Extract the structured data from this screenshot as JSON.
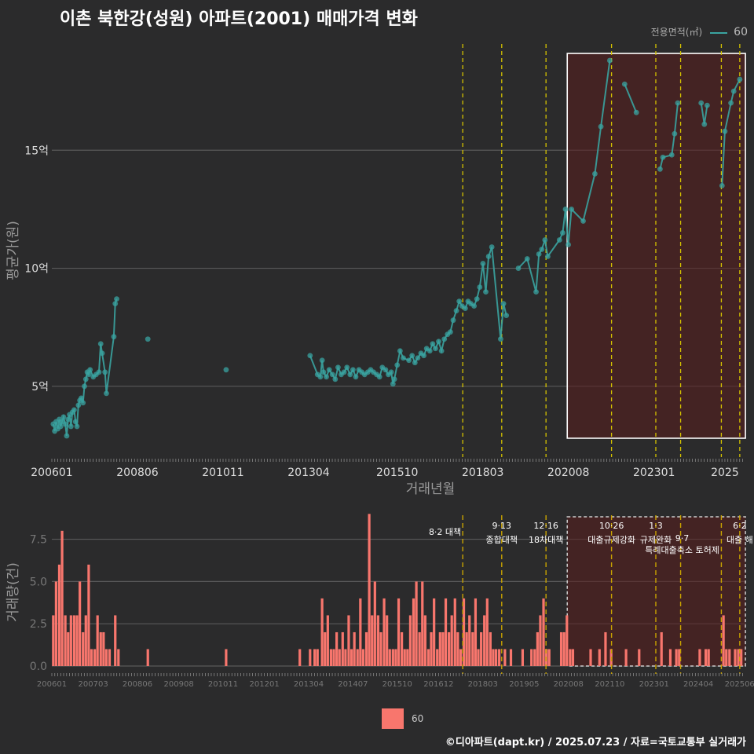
{
  "title": "이촌 북한강(성원) 아파트(2001) 매매가격 변화",
  "caption": "©디아파트(dapt.kr) / 2025.07.23 / 자료=국토교통부 실거래가",
  "legend_top": {
    "title": "전용면적(㎡)",
    "value": "60"
  },
  "legend_bottom": {
    "value": "60"
  },
  "colors": {
    "price": "#3aa3a0",
    "volume": "#f8766d",
    "policy": "#d4c200",
    "highlight": "#5a1e1e"
  },
  "chart_data": [
    {
      "type": "line",
      "name": "price",
      "xlabel": "거래년월",
      "ylabel": "평균가(원)",
      "x_ticks": [
        "200601",
        "200806",
        "201011",
        "201304",
        "201510",
        "201803",
        "202008",
        "202301",
        "2025"
      ],
      "y_ticks": [
        "5억",
        "10억",
        "15억"
      ],
      "y_tick_values": [
        5,
        10,
        15
      ],
      "xlim": [
        2006.0,
        2025.6
      ],
      "ylim": [
        2.0,
        19.5
      ],
      "policy_lines": [
        2017.6,
        2018.7,
        2019.95,
        2021.8,
        2023.05,
        2023.75,
        2024.9,
        2025.42
      ],
      "highlight_box": {
        "x0": 2020.55,
        "x1": 2025.58,
        "y0": 2.8,
        "y1": 19.1
      },
      "series": [
        {
          "name": "60",
          "points": [
            [
              2006.04,
              3.4
            ],
            [
              2006.08,
              3.1
            ],
            [
              2006.12,
              3.5
            ],
            [
              2006.17,
              3.2
            ],
            [
              2006.21,
              3.6
            ],
            [
              2006.25,
              3.3
            ],
            [
              2006.29,
              3.5
            ],
            [
              2006.33,
              3.7
            ],
            [
              2006.38,
              3.4
            ],
            [
              2006.42,
              2.9
            ],
            [
              2006.46,
              3.6
            ],
            [
              2006.5,
              3.8
            ],
            [
              2006.54,
              3.3
            ],
            [
              2006.58,
              3.9
            ],
            [
              2006.63,
              4.0
            ],
            [
              2006.67,
              3.5
            ],
            [
              2006.71,
              3.3
            ],
            [
              2006.75,
              4.2
            ],
            [
              2006.79,
              4.4
            ],
            [
              2006.83,
              4.5
            ],
            [
              2006.88,
              4.3
            ],
            [
              2006.92,
              5.0
            ],
            [
              2006.96,
              5.3
            ],
            [
              2007.0,
              5.6
            ],
            [
              2007.04,
              5.5
            ],
            [
              2007.08,
              5.7
            ],
            [
              2007.17,
              5.4
            ],
            [
              2007.25,
              5.5
            ],
            [
              2007.33,
              5.6
            ],
            [
              2007.38,
              6.8
            ],
            [
              2007.42,
              6.4
            ],
            [
              2007.5,
              5.6
            ],
            [
              2007.54,
              4.7
            ],
            [
              2007.75,
              7.1
            ],
            [
              2007.79,
              8.5
            ],
            [
              2007.83,
              8.7
            ],
            [
              2008.71,
              7.0
            ],
            [
              2010.92,
              5.7
            ],
            [
              2013.29,
              6.3
            ],
            [
              2013.5,
              5.5
            ],
            [
              2013.58,
              5.4
            ],
            [
              2013.63,
              6.1
            ],
            [
              2013.67,
              5.6
            ],
            [
              2013.75,
              5.4
            ],
            [
              2013.83,
              5.7
            ],
            [
              2013.92,
              5.5
            ],
            [
              2014.0,
              5.3
            ],
            [
              2014.08,
              5.8
            ],
            [
              2014.17,
              5.5
            ],
            [
              2014.25,
              5.6
            ],
            [
              2014.33,
              5.8
            ],
            [
              2014.42,
              5.5
            ],
            [
              2014.5,
              5.7
            ],
            [
              2014.58,
              5.4
            ],
            [
              2014.67,
              5.7
            ],
            [
              2014.75,
              5.6
            ],
            [
              2014.83,
              5.5
            ],
            [
              2014.92,
              5.6
            ],
            [
              2015.0,
              5.7
            ],
            [
              2015.08,
              5.6
            ],
            [
              2015.17,
              5.5
            ],
            [
              2015.25,
              5.4
            ],
            [
              2015.33,
              5.8
            ],
            [
              2015.42,
              5.7
            ],
            [
              2015.5,
              5.5
            ],
            [
              2015.58,
              5.6
            ],
            [
              2015.63,
              5.1
            ],
            [
              2015.67,
              5.3
            ],
            [
              2015.75,
              5.9
            ],
            [
              2015.83,
              6.5
            ],
            [
              2015.92,
              6.2
            ],
            [
              2016.08,
              6.1
            ],
            [
              2016.17,
              6.3
            ],
            [
              2016.25,
              6.0
            ],
            [
              2016.33,
              6.2
            ],
            [
              2016.42,
              6.4
            ],
            [
              2016.5,
              6.3
            ],
            [
              2016.58,
              6.6
            ],
            [
              2016.67,
              6.5
            ],
            [
              2016.75,
              6.8
            ],
            [
              2016.83,
              6.6
            ],
            [
              2016.92,
              6.9
            ],
            [
              2017.0,
              6.5
            ],
            [
              2017.08,
              7.0
            ],
            [
              2017.17,
              7.2
            ],
            [
              2017.25,
              7.3
            ],
            [
              2017.33,
              7.8
            ],
            [
              2017.42,
              8.2
            ],
            [
              2017.5,
              8.6
            ],
            [
              2017.58,
              8.4
            ],
            [
              2017.67,
              8.3
            ],
            [
              2017.75,
              8.6
            ],
            [
              2017.83,
              8.5
            ],
            [
              2017.92,
              8.4
            ],
            [
              2018.0,
              8.7
            ],
            [
              2018.08,
              9.2
            ],
            [
              2018.17,
              10.2
            ],
            [
              2018.25,
              9.0
            ],
            [
              2018.33,
              10.5
            ],
            [
              2018.42,
              10.9
            ],
            [
              2018.67,
              7.0
            ],
            [
              2018.75,
              8.5
            ],
            [
              2018.83,
              8.0
            ],
            [
              2019.17,
              10.0
            ],
            [
              2019.42,
              10.4
            ],
            [
              2019.67,
              9.0
            ],
            [
              2019.75,
              10.6
            ],
            [
              2019.83,
              10.8
            ],
            [
              2019.92,
              11.2
            ],
            [
              2020.0,
              10.5
            ],
            [
              2020.33,
              11.2
            ],
            [
              2020.42,
              11.5
            ],
            [
              2020.5,
              12.5
            ],
            [
              2020.58,
              11.0
            ],
            [
              2020.67,
              12.5
            ],
            [
              2021.0,
              12.0
            ],
            [
              2021.33,
              14.0
            ],
            [
              2021.5,
              16.0
            ],
            [
              2021.75,
              18.8
            ],
            [
              2022.17,
              17.8
            ],
            [
              2022.5,
              16.6
            ],
            [
              2023.17,
              14.2
            ],
            [
              2023.25,
              14.7
            ],
            [
              2023.5,
              14.8
            ],
            [
              2023.58,
              15.7
            ],
            [
              2023.67,
              17.0
            ],
            [
              2024.33,
              17.0
            ],
            [
              2024.42,
              16.1
            ],
            [
              2024.5,
              16.9
            ],
            [
              2024.92,
              13.5
            ],
            [
              2025.0,
              15.8
            ],
            [
              2025.17,
              17.0
            ],
            [
              2025.25,
              17.5
            ],
            [
              2025.42,
              18.0
            ]
          ]
        }
      ]
    },
    {
      "type": "bar",
      "name": "volume",
      "xlabel": "",
      "ylabel": "거래량(건)",
      "x_ticks": [
        "200601",
        "200703",
        "200806",
        "200908",
        "201011",
        "201201",
        "201304",
        "201407",
        "201510",
        "201612",
        "201803",
        "201905",
        "202008",
        "202110",
        "202301",
        "202404",
        "202506"
      ],
      "y_ticks": [
        "0.0",
        "2.5",
        "5.0",
        "7.5"
      ],
      "y_tick_values": [
        0,
        2.5,
        5,
        7.5
      ],
      "ylim": [
        0,
        9.2
      ],
      "policy_lines": [
        2017.6,
        2018.7,
        2019.95,
        2021.8,
        2023.05,
        2023.75,
        2024.9,
        2025.42
      ],
      "policy_labels": [
        {
          "date": "8·2",
          "name": "대책",
          "x": 2017.6
        },
        {
          "date": "9·13",
          "name": "종합대책",
          "x": 2018.7
        },
        {
          "date": "12·16",
          "name": "18차대책",
          "x": 2019.95
        },
        {
          "date": "10·26",
          "name": "대출규제강화",
          "x": 2021.8
        },
        {
          "date": "1·3",
          "name": "규제완화",
          "x": 2023.05
        },
        {
          "date": "9·7",
          "name": "특례대출축소 토허제",
          "x": 2023.75
        },
        {
          "date": "6·2",
          "name": "대출 해",
          "x": 2025.42
        }
      ],
      "highlight_box": {
        "x0": 2020.55,
        "x1": 2025.58
      },
      "points": [
        [
          2006.04,
          3
        ],
        [
          2006.12,
          5
        ],
        [
          2006.21,
          6
        ],
        [
          2006.29,
          8
        ],
        [
          2006.38,
          3
        ],
        [
          2006.46,
          2
        ],
        [
          2006.54,
          3
        ],
        [
          2006.63,
          3
        ],
        [
          2006.71,
          3
        ],
        [
          2006.79,
          5
        ],
        [
          2006.88,
          2
        ],
        [
          2006.96,
          3
        ],
        [
          2007.04,
          6
        ],
        [
          2007.12,
          1
        ],
        [
          2007.21,
          1
        ],
        [
          2007.29,
          3
        ],
        [
          2007.38,
          2
        ],
        [
          2007.46,
          2
        ],
        [
          2007.54,
          1
        ],
        [
          2007.63,
          1
        ],
        [
          2007.79,
          3
        ],
        [
          2007.88,
          1
        ],
        [
          2008.71,
          1
        ],
        [
          2010.92,
          1
        ],
        [
          2013.0,
          1
        ],
        [
          2013.29,
          1
        ],
        [
          2013.42,
          1
        ],
        [
          2013.5,
          1
        ],
        [
          2013.63,
          4
        ],
        [
          2013.71,
          2
        ],
        [
          2013.79,
          3
        ],
        [
          2013.88,
          1
        ],
        [
          2013.96,
          1
        ],
        [
          2014.04,
          2
        ],
        [
          2014.12,
          1
        ],
        [
          2014.21,
          2
        ],
        [
          2014.29,
          1
        ],
        [
          2014.38,
          3
        ],
        [
          2014.46,
          1
        ],
        [
          2014.54,
          2
        ],
        [
          2014.63,
          1
        ],
        [
          2014.71,
          4
        ],
        [
          2014.79,
          1
        ],
        [
          2014.88,
          2
        ],
        [
          2014.96,
          9
        ],
        [
          2015.04,
          3
        ],
        [
          2015.12,
          5
        ],
        [
          2015.21,
          3
        ],
        [
          2015.29,
          2
        ],
        [
          2015.38,
          4
        ],
        [
          2015.46,
          3
        ],
        [
          2015.54,
          1
        ],
        [
          2015.63,
          1
        ],
        [
          2015.71,
          1
        ],
        [
          2015.79,
          4
        ],
        [
          2015.88,
          2
        ],
        [
          2015.96,
          1
        ],
        [
          2016.04,
          1
        ],
        [
          2016.12,
          3
        ],
        [
          2016.21,
          4
        ],
        [
          2016.29,
          5
        ],
        [
          2016.38,
          2
        ],
        [
          2016.46,
          5
        ],
        [
          2016.54,
          3
        ],
        [
          2016.63,
          1
        ],
        [
          2016.71,
          2
        ],
        [
          2016.79,
          4
        ],
        [
          2016.88,
          1
        ],
        [
          2016.96,
          2
        ],
        [
          2017.04,
          2
        ],
        [
          2017.12,
          4
        ],
        [
          2017.21,
          2
        ],
        [
          2017.29,
          3
        ],
        [
          2017.38,
          4
        ],
        [
          2017.46,
          2
        ],
        [
          2017.54,
          1
        ],
        [
          2017.63,
          4
        ],
        [
          2017.71,
          2
        ],
        [
          2017.79,
          3
        ],
        [
          2017.88,
          2
        ],
        [
          2017.96,
          4
        ],
        [
          2018.04,
          1
        ],
        [
          2018.12,
          2
        ],
        [
          2018.21,
          3
        ],
        [
          2018.29,
          4
        ],
        [
          2018.38,
          2
        ],
        [
          2018.46,
          1
        ],
        [
          2018.54,
          1
        ],
        [
          2018.63,
          1
        ],
        [
          2018.79,
          1
        ],
        [
          2018.96,
          1
        ],
        [
          2019.29,
          1
        ],
        [
          2019.54,
          1
        ],
        [
          2019.63,
          1
        ],
        [
          2019.71,
          2
        ],
        [
          2019.79,
          3
        ],
        [
          2019.88,
          4
        ],
        [
          2019.96,
          1
        ],
        [
          2020.04,
          1
        ],
        [
          2020.38,
          2
        ],
        [
          2020.46,
          2
        ],
        [
          2020.54,
          3
        ],
        [
          2020.63,
          1
        ],
        [
          2020.71,
          1
        ],
        [
          2021.21,
          1
        ],
        [
          2021.46,
          1
        ],
        [
          2021.63,
          2
        ],
        [
          2021.79,
          1
        ],
        [
          2022.21,
          1
        ],
        [
          2022.58,
          1
        ],
        [
          2023.21,
          2
        ],
        [
          2023.46,
          1
        ],
        [
          2023.63,
          1
        ],
        [
          2023.71,
          1
        ],
        [
          2024.29,
          1
        ],
        [
          2024.46,
          1
        ],
        [
          2024.54,
          1
        ],
        [
          2024.96,
          3
        ],
        [
          2025.04,
          1
        ],
        [
          2025.13,
          1
        ],
        [
          2025.29,
          1
        ],
        [
          2025.38,
          1
        ],
        [
          2025.46,
          1
        ]
      ]
    }
  ]
}
